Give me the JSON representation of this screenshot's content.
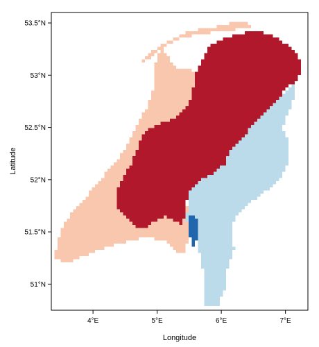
{
  "map": {
    "x_axis_title": "Longitude",
    "y_axis_title": "Latitude",
    "x_ticks": [
      {
        "value": 4,
        "label": "4°E"
      },
      {
        "value": 5,
        "label": "5°E"
      },
      {
        "value": 6,
        "label": "6°E"
      },
      {
        "value": 7,
        "label": "7°E"
      }
    ],
    "y_ticks": [
      {
        "value": 51.0,
        "label": "51°N"
      },
      {
        "value": 51.5,
        "label": "51.5°N"
      },
      {
        "value": 52.0,
        "label": "52°N"
      },
      {
        "value": 52.5,
        "label": "52.5°N"
      },
      {
        "value": 53.0,
        "label": "53°N"
      },
      {
        "value": 53.5,
        "label": "53.5°N"
      }
    ],
    "lon_range": [
      3.35,
      7.35
    ],
    "lat_range": [
      50.75,
      53.6
    ],
    "frame_color": "#000000",
    "class_colors": {
      "light-red": "#f8c7ae",
      "dark-red": "#b2182b",
      "light-blue": "#bcdbea",
      "dark-blue": "#2166ac"
    },
    "regions": [
      {
        "class": "light-red",
        "outline": [
          [
            3.4,
            51.25
          ],
          [
            3.6,
            51.2
          ],
          [
            3.9,
            51.28
          ],
          [
            4.2,
            51.35
          ],
          [
            4.5,
            51.4
          ],
          [
            4.8,
            51.45
          ],
          [
            5.1,
            51.42
          ],
          [
            5.3,
            51.3
          ],
          [
            5.45,
            51.3
          ],
          [
            5.5,
            51.55
          ],
          [
            5.45,
            51.85
          ],
          [
            5.1,
            52.05
          ],
          [
            4.95,
            52.25
          ],
          [
            5.15,
            52.45
          ],
          [
            5.35,
            52.55
          ],
          [
            5.6,
            52.6
          ],
          [
            5.75,
            52.8
          ],
          [
            5.75,
            52.95
          ],
          [
            5.55,
            53.05
          ],
          [
            5.35,
            53.05
          ],
          [
            5.2,
            53.15
          ],
          [
            5.05,
            53.25
          ],
          [
            4.95,
            53.05
          ],
          [
            4.95,
            52.9
          ],
          [
            4.85,
            52.7
          ],
          [
            4.7,
            52.55
          ],
          [
            4.6,
            52.4
          ],
          [
            4.45,
            52.25
          ],
          [
            4.25,
            52.1
          ],
          [
            4.05,
            51.95
          ],
          [
            3.85,
            51.8
          ],
          [
            3.7,
            51.7
          ],
          [
            3.55,
            51.58
          ],
          [
            3.45,
            51.4
          ]
        ]
      },
      {
        "class": "light-red",
        "outline": [
          [
            4.75,
            53.15
          ],
          [
            5.05,
            53.28
          ],
          [
            5.5,
            53.42
          ],
          [
            5.9,
            53.46
          ],
          [
            6.15,
            53.5
          ],
          [
            6.4,
            53.52
          ],
          [
            6.45,
            53.46
          ],
          [
            6.1,
            53.42
          ],
          [
            5.7,
            53.4
          ],
          [
            5.3,
            53.34
          ],
          [
            4.95,
            53.2
          ],
          [
            4.75,
            53.1
          ]
        ]
      },
      {
        "class": "dark-red",
        "outline": [
          [
            4.35,
            51.75
          ],
          [
            4.65,
            51.55
          ],
          [
            4.85,
            51.55
          ],
          [
            5.1,
            51.65
          ],
          [
            5.3,
            51.6
          ],
          [
            5.4,
            51.55
          ],
          [
            5.45,
            51.75
          ],
          [
            5.5,
            51.9
          ],
          [
            5.65,
            51.98
          ],
          [
            5.85,
            52.05
          ],
          [
            6.05,
            52.15
          ],
          [
            6.15,
            52.3
          ],
          [
            6.4,
            52.45
          ],
          [
            6.6,
            52.6
          ],
          [
            6.75,
            52.7
          ],
          [
            6.95,
            52.82
          ],
          [
            7.05,
            52.9
          ],
          [
            7.2,
            52.95
          ],
          [
            7.25,
            53.1
          ],
          [
            7.2,
            53.2
          ],
          [
            6.9,
            53.35
          ],
          [
            6.6,
            53.42
          ],
          [
            6.3,
            53.4
          ],
          [
            6.05,
            53.35
          ],
          [
            5.85,
            53.3
          ],
          [
            5.7,
            53.15
          ],
          [
            5.6,
            53.0
          ],
          [
            5.55,
            52.85
          ],
          [
            5.5,
            52.72
          ],
          [
            5.3,
            52.6
          ],
          [
            5.1,
            52.55
          ],
          [
            4.9,
            52.5
          ],
          [
            4.75,
            52.4
          ],
          [
            4.6,
            52.15
          ],
          [
            4.45,
            52.0
          ],
          [
            4.35,
            51.85
          ]
        ]
      },
      {
        "class": "light-blue",
        "outline": [
          [
            5.45,
            51.6
          ],
          [
            5.6,
            51.45
          ],
          [
            5.7,
            51.2
          ],
          [
            5.75,
            51.0
          ],
          [
            5.75,
            50.8
          ],
          [
            5.95,
            50.78
          ],
          [
            6.05,
            50.95
          ],
          [
            6.1,
            51.15
          ],
          [
            6.2,
            51.35
          ],
          [
            6.15,
            51.55
          ],
          [
            6.3,
            51.7
          ],
          [
            6.6,
            51.85
          ],
          [
            6.85,
            51.95
          ],
          [
            7.05,
            52.15
          ],
          [
            7.05,
            52.35
          ],
          [
            6.95,
            52.5
          ],
          [
            7.05,
            52.65
          ],
          [
            7.15,
            52.8
          ],
          [
            7.15,
            52.92
          ],
          [
            6.95,
            52.82
          ],
          [
            6.75,
            52.7
          ],
          [
            6.6,
            52.6
          ],
          [
            6.4,
            52.45
          ],
          [
            6.15,
            52.3
          ],
          [
            6.05,
            52.15
          ],
          [
            5.85,
            52.05
          ],
          [
            5.65,
            51.98
          ],
          [
            5.5,
            51.9
          ]
        ]
      },
      {
        "class": "dark-blue",
        "outline": [
          [
            5.5,
            51.65
          ],
          [
            5.6,
            51.68
          ],
          [
            5.65,
            51.5
          ],
          [
            5.6,
            51.38
          ],
          [
            5.55,
            51.35
          ],
          [
            5.5,
            51.5
          ]
        ]
      }
    ]
  }
}
